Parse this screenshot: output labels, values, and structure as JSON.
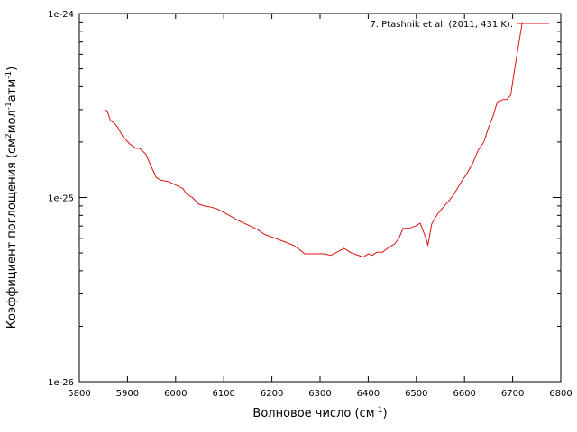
{
  "chart_data": {
    "type": "line",
    "title": "",
    "xlabel": "Волновое число (см",
    "xlabel_sup": "-1",
    "xlabel_end": ")",
    "ylabel_parts": [
      "Коэффициент поглощения (см",
      "2",
      "мол",
      "-1",
      "атм",
      "-1",
      ")"
    ],
    "xlim": [
      5800,
      6800
    ],
    "ylim": [
      1e-26,
      1e-24
    ],
    "yscale": "log",
    "x_ticks": [
      5800,
      5900,
      6000,
      6100,
      6200,
      6300,
      6400,
      6500,
      6600,
      6700,
      6800
    ],
    "x_tick_labels": [
      "5800",
      "5900",
      "6000",
      "6100",
      "6200",
      "6300",
      "6400",
      "6500",
      "6600",
      "6700",
      "6800"
    ],
    "y_ticks": [
      1e-26,
      1e-25,
      1e-24
    ],
    "y_tick_labels": [
      "1e-26",
      "1e-25",
      "1e-24"
    ],
    "grid": false,
    "legend_position": "top-right",
    "colors": {
      "series": "#dd1111",
      "axis": "#000000"
    },
    "series": [
      {
        "name": "7. Ptashnik et al. (2011, 431 K).",
        "x": [
          5852,
          5858,
          5865,
          5872,
          5880,
          5890,
          5905,
          5918,
          5925,
          5938,
          5948,
          5960,
          5970,
          5985,
          6000,
          6015,
          6022,
          6035,
          6048,
          6060,
          6070,
          6085,
          6100,
          6115,
          6130,
          6150,
          6170,
          6185,
          6200,
          6215,
          6230,
          6245,
          6258,
          6268,
          6285,
          6300,
          6310,
          6322,
          6335,
          6350,
          6362,
          6375,
          6390,
          6400,
          6408,
          6418,
          6430,
          6442,
          6455,
          6465,
          6472,
          6485,
          6498,
          6508,
          6520,
          6524,
          6532,
          6545,
          6558,
          6568,
          6578,
          6592,
          6605,
          6618,
          6628,
          6640,
          6650,
          6660,
          6668,
          6680,
          6688,
          6696,
          6702,
          6720
        ],
        "y": [
          3e-25,
          2.95e-25,
          2.6e-25,
          2.55e-25,
          2.4e-25,
          2.15e-25,
          1.95e-25,
          1.85e-25,
          1.85e-25,
          1.72e-25,
          1.5e-25,
          1.28e-25,
          1.24e-25,
          1.22e-25,
          1.17e-25,
          1.12e-25,
          1.05e-25,
          1e-25,
          9.2e-26,
          9e-26,
          8.9e-26,
          8.7e-26,
          8.3e-26,
          7.9e-26,
          7.5e-26,
          7.1e-26,
          6.7e-26,
          6.3e-26,
          6.1e-26,
          5.9e-26,
          5.7e-26,
          5.5e-26,
          5.2e-26,
          4.95e-26,
          4.95e-26,
          4.95e-26,
          4.95e-26,
          4.85e-26,
          5.05e-26,
          5.3e-26,
          5.05e-26,
          4.9e-26,
          4.75e-26,
          4.95e-26,
          4.85e-26,
          5.05e-26,
          5.05e-26,
          5.35e-26,
          5.6e-26,
          6.1e-26,
          6.8e-26,
          6.8e-26,
          7e-26,
          7.25e-26,
          6e-26,
          5.5e-26,
          7.2e-26,
          8.2e-26,
          9e-26,
          9.6e-26,
          1.04e-25,
          1.2e-25,
          1.35e-25,
          1.55e-25,
          1.8e-25,
          2e-25,
          2.4e-25,
          2.8e-25,
          3.3e-25,
          3.4e-25,
          3.4e-25,
          3.6e-25,
          4.6e-25,
          9e-25
        ]
      }
    ]
  }
}
